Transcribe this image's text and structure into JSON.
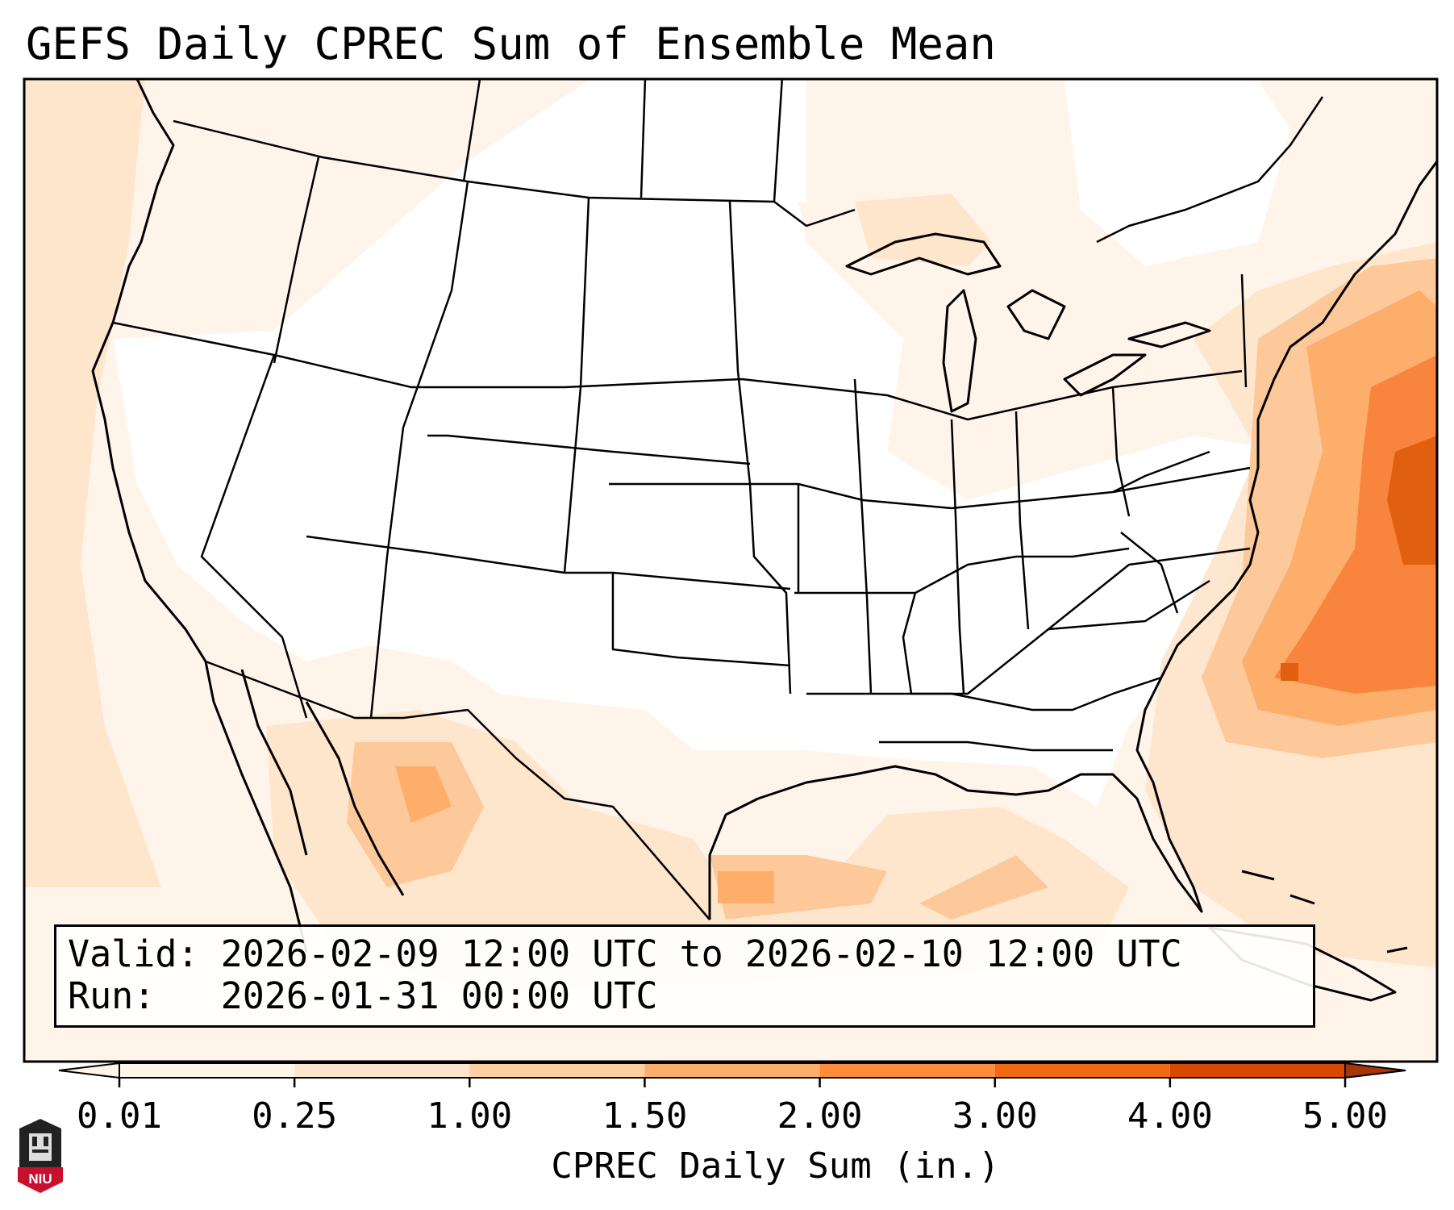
{
  "title": "GEFS Daily CPREC Sum of Ensemble Mean",
  "info": {
    "valid": "Valid: 2026-02-09 12:00 UTC to 2026-02-10 12:00 UTC",
    "run": "Run:   2026-01-31 00:00 UTC"
  },
  "colorbar": {
    "label": "CPREC Daily Sum (in.)",
    "ticks": [
      "0.01",
      "0.25",
      "1.00",
      "1.50",
      "2.00",
      "3.00",
      "4.00",
      "5.00"
    ],
    "colors": [
      "#fff5eb",
      "#fee6ce",
      "#fdd0a2",
      "#fdae6b",
      "#fd8d3c",
      "#f16913",
      "#d94801",
      "#a63603"
    ]
  },
  "logo": {
    "text": "NIU"
  },
  "icons": {
    "logo": "university-tower-icon"
  }
}
